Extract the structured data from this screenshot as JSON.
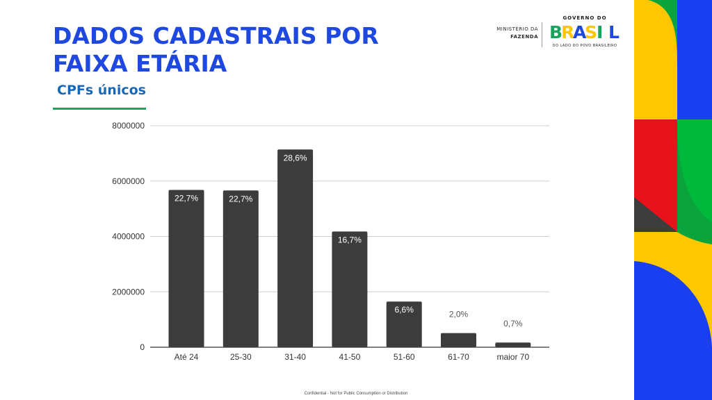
{
  "header": {
    "title": "DADOS CADASTRAIS POR FAIXA ETÁRIA",
    "subtitle": "CPFs únicos"
  },
  "branding": {
    "ministry_line1": "MINISTÉRIO DA",
    "ministry_line2": "FAZENDA",
    "gov_top": "GOVERNO DO",
    "gov_word": "BRASIL",
    "gov_tagline": "DO LADO DO POVO BRASILEIRO",
    "colors": {
      "blue": "#1f48e0",
      "green": "#1aa35a",
      "yellow": "#ffc700",
      "red": "#e8121b",
      "dark": "#3c3c3c"
    }
  },
  "footer": {
    "text": "Confidential - Not for Public Consumption or Distribution"
  },
  "chart_data": {
    "type": "bar",
    "title": "",
    "xlabel": "",
    "ylabel": "",
    "categories": [
      "Até 24",
      "25-30",
      "31-40",
      "41-50",
      "51-60",
      "61-70",
      "maior 70"
    ],
    "values": [
      5680000,
      5660000,
      7140000,
      4180000,
      1650000,
      510000,
      170000
    ],
    "labels": [
      "22,7%",
      "22,7%",
      "28,6%",
      "16,7%",
      "6,6%",
      "2,0%",
      "0,7%"
    ],
    "ylim": [
      0,
      8000000
    ],
    "yticks": [
      "0",
      "2000000",
      "4000000",
      "6000000",
      "8000000"
    ],
    "grid": true,
    "bar_color": "#3c3c3c"
  }
}
